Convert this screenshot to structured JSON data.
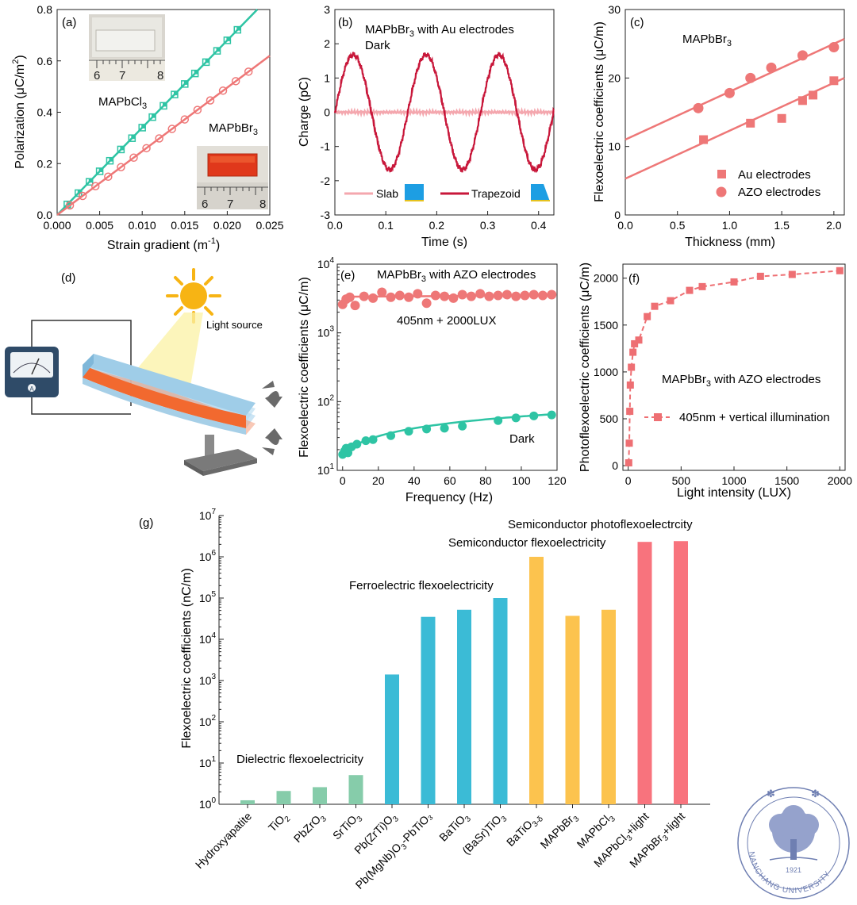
{
  "colors": {
    "green": "#2ec4a4",
    "pink": "#ee7777",
    "pink_light": "#f4a7ae",
    "crimson": "#c8173a",
    "blue_bar": "#3bbbd6",
    "yellow_bar": "#fcc34e",
    "green_bar": "#86ccaa",
    "red_bar": "#f8737d",
    "meter": "#2f4b68",
    "logo": "#6f7fb2"
  },
  "chart_data": [
    {
      "id": "a",
      "type": "scatter",
      "panel_label": "(a)",
      "xlabel": "Strain gradient (m",
      "xlabel_sup": "-1",
      "xlabel_end": ")",
      "ylabel": "Polarization (μC/m",
      "ylabel_sup": "2",
      "ylabel_end": ")",
      "xlim": [
        0,
        0.025
      ],
      "ylim": [
        0,
        0.8
      ],
      "xticks": [
        0,
        0.005,
        0.01,
        0.015,
        0.02,
        0.025
      ],
      "xtick_labels": [
        "0.000",
        "0.005",
        "0.010",
        "0.015",
        "0.020",
        "0.025"
      ],
      "yticks": [
        0,
        0.2,
        0.4,
        0.6,
        0.8
      ],
      "ytick_labels": [
        "0.0",
        "0.2",
        "0.4",
        "0.6",
        "0.8"
      ],
      "annotations": [
        {
          "text": "MAPbCl",
          "sub": "3"
        },
        {
          "text": "MAPbBr",
          "sub": "3"
        }
      ],
      "ruler_labels": [
        "6",
        "7",
        "8"
      ],
      "series": [
        {
          "slope": 34.0,
          "x": [
            0.0012,
            0.0025,
            0.0038,
            0.005,
            0.0062,
            0.0075,
            0.0088,
            0.01,
            0.0112,
            0.0125,
            0.0138,
            0.015,
            0.0162,
            0.0175,
            0.0188,
            0.02,
            0.0212
          ],
          "y": [
            0.041,
            0.085,
            0.129,
            0.17,
            0.211,
            0.255,
            0.299,
            0.34,
            0.381,
            0.425,
            0.469,
            0.51,
            0.551,
            0.595,
            0.639,
            0.68,
            0.721
          ]
        },
        {
          "slope": 24.8,
          "x": [
            0.0015,
            0.003,
            0.0045,
            0.006,
            0.0075,
            0.009,
            0.0105,
            0.012,
            0.0135,
            0.015,
            0.0165,
            0.018,
            0.0195,
            0.021,
            0.0225
          ],
          "y": [
            0.037,
            0.074,
            0.112,
            0.149,
            0.186,
            0.223,
            0.26,
            0.298,
            0.335,
            0.372,
            0.409,
            0.446,
            0.484,
            0.521,
            0.558
          ]
        }
      ]
    },
    {
      "id": "b",
      "type": "line",
      "panel_label": "(b)",
      "title": "MAPbBr",
      "title_sub": "3",
      "title_end": " with Au electrodes",
      "subtitle": "Dark",
      "xlabel": "Time (s)",
      "ylabel": "Charge (pC)",
      "xlim": [
        0,
        0.43
      ],
      "ylim": [
        -3,
        3
      ],
      "xticks": [
        0,
        0.1,
        0.2,
        0.3,
        0.4
      ],
      "xtick_labels": [
        "0.0",
        "0.1",
        "0.2",
        "0.3",
        "0.4"
      ],
      "yticks": [
        -3,
        -2,
        -1,
        0,
        1,
        2,
        3
      ],
      "ytick_labels": [
        "-3",
        "-2",
        "-1",
        "0",
        "1",
        "2",
        "3"
      ],
      "series": [
        {
          "name": "Slab",
          "amplitude": 0.0,
          "base": 0.0
        },
        {
          "name": "Trapezoid",
          "amplitude": 1.68,
          "period": 0.143,
          "phase_peak": 0.036
        }
      ]
    },
    {
      "id": "c",
      "type": "scatter",
      "panel_label": "(c)",
      "title": "MAPbBr",
      "title_sub": "3",
      "xlabel": "Thickness (mm)",
      "ylabel": "Flexoelectric coefficients (μC/m)",
      "xlim": [
        0,
        2.1
      ],
      "ylim": [
        0,
        30
      ],
      "xticks": [
        0,
        0.5,
        1.0,
        1.5,
        2.0
      ],
      "xtick_labels": [
        "0.0",
        "0.5",
        "1.0",
        "1.5",
        "2.0"
      ],
      "yticks": [
        0,
        10,
        20,
        30
      ],
      "ytick_labels": [
        "0",
        "10",
        "20",
        "30"
      ],
      "legend_position": "bottom-right",
      "series": [
        {
          "name": "Au electrodes",
          "marker": "square",
          "fit": [
            5.3,
            7.0
          ],
          "x": [
            0.75,
            1.2,
            1.5,
            1.7,
            1.8,
            2.0
          ],
          "y": [
            11.0,
            13.4,
            14.1,
            16.7,
            17.5,
            19.6
          ]
        },
        {
          "name": "AZO electrodes",
          "marker": "circle",
          "fit": [
            11.0,
            7.0
          ],
          "x": [
            0.7,
            1.0,
            1.2,
            1.4,
            1.7,
            2.0
          ],
          "y": [
            15.6,
            17.8,
            20.0,
            21.5,
            23.3,
            24.5
          ]
        }
      ]
    },
    {
      "id": "e",
      "type": "scatter",
      "panel_label": "(e)",
      "title": "MAPbBr",
      "title_sub": "3",
      "title_end": " with AZO electrodes",
      "xlabel": "Frequency (Hz)",
      "ylabel": "Flexoelectric coefficients (μC/m)",
      "xlim": [
        -3,
        120
      ],
      "ylim": [
        10,
        10000
      ],
      "yscale": "log",
      "xticks": [
        0,
        20,
        40,
        60,
        80,
        100,
        120
      ],
      "xtick_labels": [
        "0",
        "20",
        "40",
        "60",
        "80",
        "100",
        "120"
      ],
      "yticks": [
        10,
        100,
        1000,
        10000
      ],
      "ytick_labels": [
        "10",
        "10",
        "10",
        "10"
      ],
      "ytick_exps": [
        "1",
        "2",
        "3",
        "4"
      ],
      "annotations": [
        {
          "text": "405nm + 2000LUX"
        },
        {
          "text": "Dark"
        }
      ],
      "series": [
        {
          "name": "405nm + 2000LUX",
          "x": [
            0,
            2,
            4,
            7,
            12,
            17,
            22,
            27,
            32,
            37,
            42,
            47,
            52,
            57,
            62,
            67,
            72,
            77,
            82,
            87,
            92,
            97,
            102,
            107,
            112,
            117
          ],
          "y": [
            2600,
            3100,
            3300,
            2500,
            3400,
            3200,
            3900,
            3300,
            3500,
            3300,
            3700,
            2700,
            3500,
            3400,
            3200,
            3600,
            3400,
            3700,
            3400,
            3500,
            3600,
            3400,
            3500,
            3600,
            3500,
            3600
          ]
        },
        {
          "name": "Dark",
          "x": [
            0,
            1,
            2,
            3,
            5,
            8,
            13,
            17,
            27,
            37,
            47,
            57,
            67,
            87,
            97,
            107,
            117
          ],
          "y": [
            17,
            19,
            21,
            18,
            22,
            24,
            27,
            28,
            32,
            37,
            40,
            41,
            44,
            53,
            58,
            62,
            64
          ]
        }
      ]
    },
    {
      "id": "f",
      "type": "line",
      "panel_label": "(f)",
      "xlabel": "Light intensity (LUX)",
      "ylabel": "Photoflexoelectric coefficients (μC/m)",
      "xlim": [
        -50,
        2050
      ],
      "ylim": [
        -50,
        2150
      ],
      "xticks": [
        0,
        500,
        1000,
        1500,
        2000
      ],
      "xtick_labels": [
        "0",
        "500",
        "1000",
        "1500",
        "2000"
      ],
      "yticks": [
        0,
        500,
        1000,
        1500,
        2000
      ],
      "ytick_labels": [
        "0",
        "500",
        "1000",
        "1500",
        "2000"
      ],
      "annotations": [
        {
          "text": "MAPbBr",
          "sub": "3",
          "end": " with AZO electrodes"
        }
      ],
      "series": [
        {
          "name": "405nm + vertical illumination",
          "style": "dashed",
          "marker": "square",
          "x": [
            5,
            10,
            15,
            20,
            30,
            45,
            60,
            100,
            180,
            250,
            400,
            580,
            700,
            1000,
            1250,
            1550,
            2000
          ],
          "y": [
            30,
            240,
            580,
            860,
            1050,
            1210,
            1300,
            1340,
            1590,
            1700,
            1760,
            1870,
            1910,
            1960,
            2020,
            2040,
            2080
          ]
        }
      ]
    },
    {
      "id": "g",
      "type": "bar",
      "panel_label": "(g)",
      "ylabel": "Flexoelectric coefficients (nC/m)",
      "yscale": "log",
      "ylim": [
        1,
        10000000
      ],
      "yticks": [
        1,
        10,
        100,
        1000,
        10000,
        100000,
        1000000,
        10000000
      ],
      "ytick_labels": [
        "10",
        "10",
        "10",
        "10",
        "10",
        "10",
        "10",
        "10"
      ],
      "ytick_exps": [
        "0",
        "1",
        "2",
        "3",
        "4",
        "5",
        "6",
        "7"
      ],
      "categories": [
        {
          "label": "Hydroxyapatite",
          "sub": "",
          "end": "",
          "value": 1.25,
          "group": "dielectric"
        },
        {
          "label": "TiO",
          "sub": "2",
          "end": "",
          "value": 2.1,
          "group": "dielectric"
        },
        {
          "label": "PbZrO",
          "sub": "3",
          "end": "",
          "value": 2.6,
          "group": "dielectric"
        },
        {
          "label": "SrTiO",
          "sub": "3",
          "end": "",
          "value": 5.1,
          "group": "dielectric"
        },
        {
          "label": "Pb(ZrTi)O",
          "sub": "3",
          "end": "",
          "value": 1400,
          "group": "ferroelectric"
        },
        {
          "label": "Pb(MgNb)O",
          "sub": "3",
          "end": "-PbTiO₃",
          "value": 35000,
          "group": "ferroelectric"
        },
        {
          "label": "BaTiO",
          "sub": "3",
          "end": "",
          "value": 52000,
          "group": "ferroelectric"
        },
        {
          "label": "(BaSr)TiO",
          "sub": "3",
          "end": "",
          "value": 100000,
          "group": "ferroelectric"
        },
        {
          "label": "BaTiO",
          "sub": "3-δ",
          "end": "",
          "value": 1000000,
          "group": "semiconductor"
        },
        {
          "label": "MAPbBr",
          "sub": "3",
          "end": "",
          "value": 37000,
          "group": "semiconductor"
        },
        {
          "label": "MAPbCl",
          "sub": "3",
          "end": "",
          "value": 52000,
          "group": "semiconductor"
        },
        {
          "label": "MAPbCl",
          "sub": "3",
          "end": "+light",
          "value": 2300000,
          "group": "photo"
        },
        {
          "label": "MAPbBr",
          "sub": "3",
          "end": "+light",
          "value": 2400000,
          "group": "photo"
        }
      ],
      "annotations": [
        {
          "text": "Dielectric flexoelectricity"
        },
        {
          "text": "Ferroelectric flexoelectricity"
        },
        {
          "text": "Semiconductor flexoelectricity"
        },
        {
          "text": "Semiconductor photoflexoelectrcity"
        }
      ]
    }
  ],
  "diagram_d": {
    "panel_label": "(d)",
    "light_label": "Light source",
    "meter_label": "A"
  },
  "logo": {
    "lettering": "NANCHANG UNIVERSITY",
    "year": "1921"
  }
}
